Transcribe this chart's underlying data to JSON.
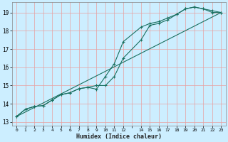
{
  "title": "",
  "xlabel": "Humidex (Indice chaleur)",
  "ylabel": "",
  "background_color": "#cceeff",
  "grid_color": "#e8a0a0",
  "line_color": "#1a7060",
  "xlim": [
    -0.5,
    23.5
  ],
  "ylim": [
    12.8,
    19.55
  ],
  "yticks": [
    13,
    14,
    15,
    16,
    17,
    18,
    19
  ],
  "xticks": [
    0,
    1,
    2,
    3,
    4,
    5,
    6,
    7,
    8,
    9,
    10,
    11,
    12,
    13,
    14,
    15,
    16,
    17,
    18,
    19,
    20,
    21,
    22,
    23
  ],
  "xtick_labels": [
    "0",
    "1",
    "2",
    "3",
    "4",
    "5",
    "6",
    "7",
    "8",
    "9",
    "10",
    "11",
    "12",
    "",
    "14",
    "15",
    "16",
    "17",
    "18",
    "19",
    "20",
    "21",
    "22",
    "23"
  ],
  "line1_x": [
    0,
    1,
    2,
    3,
    4,
    5,
    6,
    7,
    8,
    9,
    10,
    11,
    12,
    14,
    15,
    16,
    17,
    18,
    19,
    20,
    21,
    22,
    23
  ],
  "line1_y": [
    13.3,
    13.7,
    13.85,
    13.9,
    14.2,
    14.5,
    14.6,
    14.82,
    14.9,
    15.0,
    15.0,
    15.5,
    16.5,
    17.5,
    18.3,
    18.4,
    18.6,
    18.9,
    19.2,
    19.3,
    19.2,
    19.1,
    19.0
  ],
  "line2_x": [
    0,
    1,
    2,
    3,
    4,
    5,
    6,
    7,
    8,
    9,
    10,
    11,
    12,
    14,
    15,
    16,
    17,
    18,
    19,
    20,
    21,
    22,
    23
  ],
  "line2_y": [
    13.3,
    13.7,
    13.85,
    13.9,
    14.2,
    14.5,
    14.6,
    14.82,
    14.9,
    14.8,
    15.5,
    16.2,
    17.4,
    18.2,
    18.4,
    18.5,
    18.7,
    18.9,
    19.2,
    19.3,
    19.2,
    19.0,
    19.0
  ],
  "line3_x": [
    0,
    23
  ],
  "line3_y": [
    13.3,
    19.0
  ]
}
